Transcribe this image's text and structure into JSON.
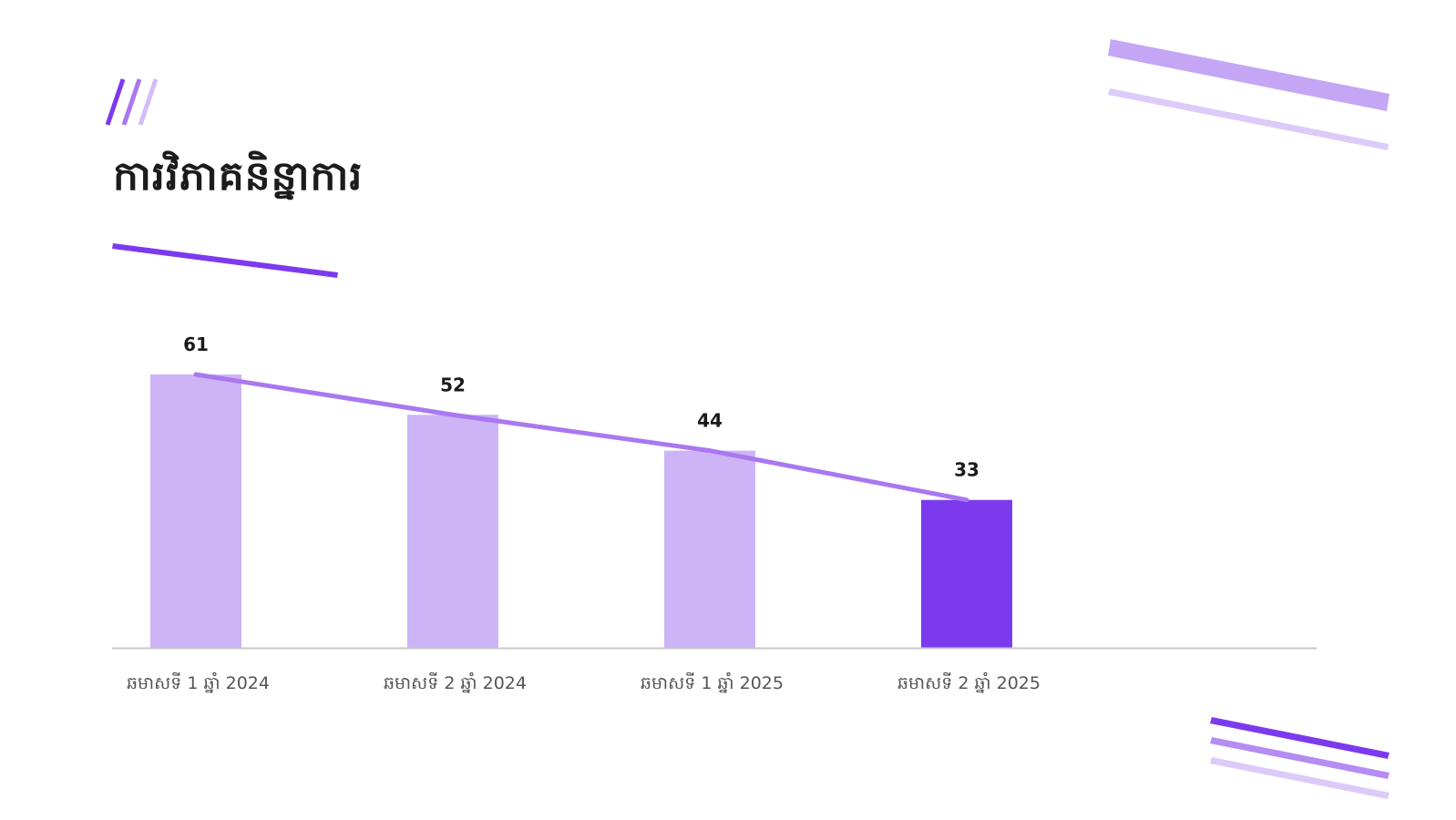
{
  "slide": {
    "title": "ការវិភាគនិន្នាការ"
  },
  "colors": {
    "accent": "#7c3aed",
    "bar_light": "#cdb4f6",
    "bar_highlight": "#7c3aed",
    "trend_line": "#a978f0",
    "deco_light": "#c4a6f5",
    "deco_lighter": "#dccbf9",
    "axis": "#c8c8c8",
    "label_text": "#555555",
    "value_text": "#1a1a1a"
  },
  "chart_data": {
    "type": "bar",
    "categories": [
      "ឆមាសទី 1 ឆ្នាំ 2024",
      "ឆមាសទី 2 ឆ្នាំ 2024",
      "ឆមាសទី 1 ឆ្នាំ 2025",
      "ឆមាសទី 2 ឆ្នាំ 2025"
    ],
    "values": [
      61,
      52,
      44,
      33
    ],
    "data_labels": [
      "61",
      "52",
      "44",
      "33"
    ],
    "highlight_index": 3,
    "trend_line": true,
    "title": "",
    "xlabel": "",
    "ylabel": "",
    "ylim": [
      0,
      61
    ],
    "grid": false,
    "legend": "none"
  }
}
